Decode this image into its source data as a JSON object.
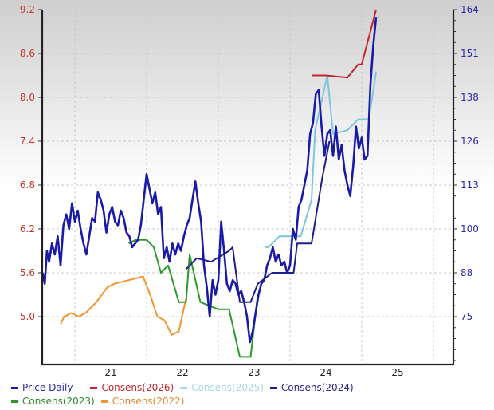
{
  "chart_data": {
    "type": "line",
    "title": "",
    "xlabel": "",
    "ylabel_left": "",
    "ylabel_right": "",
    "x_ticks": [
      "21",
      "22",
      "23",
      "24",
      "25"
    ],
    "y_left_ticks": [
      "9.2",
      "8.6",
      "8.0",
      "7.4",
      "6.8",
      "6.2",
      "5.6",
      "5.0"
    ],
    "y_right_ticks": [
      "164",
      "151",
      "138",
      "126",
      "113",
      "100",
      "88",
      "75"
    ],
    "ylim_left": [
      4.4,
      9.2
    ],
    "grid": true,
    "legend_position": "bottom",
    "series": [
      {
        "name": "Price Daily",
        "color": "#1a1aa6",
        "axis": "left",
        "x": [
          2020.55,
          2020.58,
          2020.61,
          2020.64,
          2020.68,
          2020.72,
          2020.76,
          2020.8,
          2020.84,
          2020.88,
          2020.92,
          2020.96,
          2021.0,
          2021.04,
          2021.08,
          2021.12,
          2021.16,
          2021.2,
          2021.24,
          2021.28,
          2021.32,
          2021.36,
          2021.4,
          2021.44,
          2021.48,
          2021.52,
          2021.56,
          2021.6,
          2021.64,
          2021.68,
          2021.72,
          2021.76,
          2021.8,
          2021.84,
          2021.88,
          2021.92,
          2021.96,
          2022.0,
          2022.04,
          2022.08,
          2022.12,
          2022.16,
          2022.2,
          2022.24,
          2022.28,
          2022.32,
          2022.36,
          2022.4,
          2022.44,
          2022.48,
          2022.52,
          2022.56,
          2022.6,
          2022.64,
          2022.68,
          2022.72,
          2022.76,
          2022.8,
          2022.84,
          2022.88,
          2022.92,
          2022.96,
          2023.0,
          2023.04,
          2023.08,
          2023.12,
          2023.16,
          2023.2,
          2023.24,
          2023.28,
          2023.32,
          2023.36,
          2023.4,
          2023.44,
          2023.48,
          2023.52,
          2023.56,
          2023.6,
          2023.64,
          2023.68,
          2023.72,
          2023.76,
          2023.8,
          2023.84,
          2023.88,
          2023.92,
          2023.96,
          2024.0,
          2024.04,
          2024.08,
          2024.12,
          2024.16,
          2024.2,
          2024.24,
          2024.28,
          2024.32,
          2024.36,
          2024.4,
          2024.44,
          2024.48,
          2024.52,
          2024.56,
          2024.6,
          2024.64,
          2024.68,
          2024.72,
          2024.76,
          2024.8,
          2024.84,
          2024.88,
          2024.92,
          2024.96,
          2025.0,
          2025.04,
          2025.08,
          2025.12,
          2025.16,
          2025.2
        ],
        "values": [
          5.6,
          5.45,
          5.9,
          5.75,
          6.0,
          5.85,
          6.1,
          5.7,
          6.25,
          6.4,
          6.2,
          6.55,
          6.3,
          6.45,
          6.2,
          6.0,
          5.85,
          6.1,
          6.35,
          6.3,
          6.7,
          6.6,
          6.45,
          6.15,
          6.4,
          6.5,
          6.3,
          6.25,
          6.45,
          6.35,
          6.15,
          6.1,
          5.95,
          6.0,
          6.05,
          6.25,
          6.6,
          6.95,
          6.75,
          6.55,
          6.7,
          6.4,
          6.5,
          5.8,
          5.95,
          5.75,
          6.0,
          5.85,
          6.0,
          5.9,
          6.1,
          6.25,
          6.35,
          6.6,
          6.85,
          6.55,
          6.3,
          5.7,
          5.4,
          5.0,
          5.5,
          5.3,
          5.5,
          6.3,
          5.9,
          5.45,
          5.35,
          5.5,
          5.45,
          5.3,
          5.35,
          5.2,
          5.0,
          4.65,
          4.8,
          5.05,
          5.3,
          5.45,
          5.5,
          5.7,
          5.8,
          5.95,
          5.75,
          5.85,
          5.7,
          5.75,
          5.6,
          5.7,
          6.2,
          6.05,
          6.5,
          6.6,
          6.8,
          7.0,
          7.5,
          7.65,
          8.05,
          8.1,
          7.6,
          7.2,
          7.5,
          7.55,
          7.2,
          7.6,
          7.15,
          7.35,
          7.0,
          6.8,
          6.65,
          7.05,
          7.6,
          7.3,
          7.45,
          7.15,
          7.2,
          8.15,
          8.7,
          9.1
        ],
        "note": "approximate visual reading of a noisy daily series"
      },
      {
        "name": "Consens(2026)",
        "color": "#c0262c",
        "axis": "left",
        "x": [
          2024.3,
          2024.5,
          2024.8,
          2024.95,
          2025.0,
          2025.2
        ],
        "values": [
          8.3,
          8.3,
          8.27,
          8.45,
          8.45,
          9.2
        ]
      },
      {
        "name": "Consens(2025)",
        "color": "#7cc7dc",
        "axis": "left",
        "x": [
          2023.65,
          2023.7,
          2023.85,
          2024.15,
          2024.3,
          2024.35,
          2024.52,
          2024.6,
          2024.8,
          2024.95,
          2025.1,
          2025.2
        ],
        "values": [
          5.95,
          5.95,
          6.1,
          6.1,
          6.6,
          7.55,
          8.3,
          7.5,
          7.55,
          7.7,
          7.7,
          8.35
        ]
      },
      {
        "name": "Consens(2024)",
        "color": "#1f1f8a",
        "axis": "left",
        "x": [
          2022.55,
          2022.7,
          2022.9,
          2023.15,
          2023.2,
          2023.3,
          2023.45,
          2023.55,
          2023.75,
          2024.05,
          2024.1,
          2024.3,
          2024.45,
          2024.55
        ],
        "values": [
          5.65,
          5.8,
          5.75,
          5.9,
          5.95,
          5.2,
          5.2,
          5.45,
          5.6,
          5.6,
          6.0,
          6.0,
          6.9,
          7.4
        ]
      },
      {
        "name": "Consens(2023)",
        "color": "#2a9a2a",
        "axis": "left",
        "x": [
          2021.75,
          2021.85,
          2022.0,
          2022.1,
          2022.2,
          2022.3,
          2022.45,
          2022.55,
          2022.6,
          2022.75,
          2023.0,
          2023.15,
          2023.3,
          2023.4,
          2023.45,
          2023.55
        ],
        "values": [
          6.0,
          6.05,
          6.05,
          5.95,
          5.6,
          5.7,
          5.2,
          5.2,
          5.85,
          5.2,
          5.1,
          5.1,
          4.45,
          4.45,
          4.45,
          5.3
        ]
      },
      {
        "name": "Consens(2022)",
        "color": "#f0952f",
        "axis": "left",
        "x": [
          2020.8,
          2020.85,
          2020.95,
          2021.05,
          2021.15,
          2021.3,
          2021.45,
          2021.55,
          2021.75,
          2021.95,
          2022.05,
          2022.15,
          2022.25,
          2022.35,
          2022.45,
          2022.55
        ],
        "values": [
          4.9,
          5.0,
          5.05,
          5.0,
          5.05,
          5.2,
          5.4,
          5.45,
          5.5,
          5.55,
          5.3,
          5.0,
          4.95,
          4.75,
          4.8,
          5.25
        ]
      }
    ]
  },
  "legend": {
    "items": [
      {
        "label": "Price Daily",
        "color": "#1a1aa6",
        "text_color": "#2a2aa8"
      },
      {
        "label": "Consens(2026)",
        "color": "#c0262c",
        "text_color": "#c0262c"
      },
      {
        "label": "Consens(2025)",
        "color": "#a8d8e6",
        "text_color": "#a8d8e6"
      },
      {
        "label": "Consens(2024)",
        "color": "#1f1f8a",
        "text_color": "#2a2a8a"
      },
      {
        "label": "Consens(2023)",
        "color": "#2a9a2a",
        "text_color": "#2a8a2a"
      },
      {
        "label": "Consens(2022)",
        "color": "#f0952f",
        "text_color": "#e08a30"
      }
    ]
  }
}
